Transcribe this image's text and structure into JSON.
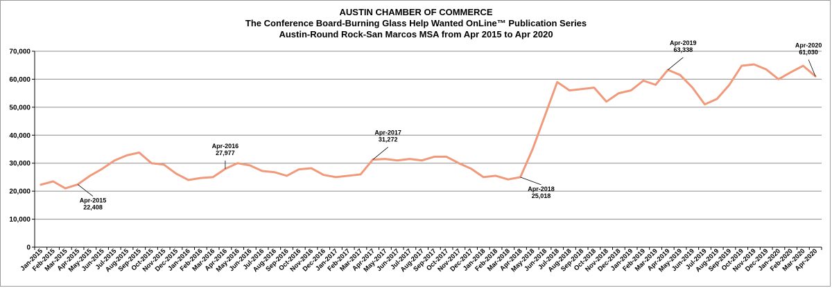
{
  "chart_data": {
    "type": "line",
    "title": "AUSTIN CHAMBER  OF COMMERCE",
    "subtitle": "The Conference Board-Burning  Glass  Help Wanted OnLine™ Publication Series",
    "subtitle2": "Austin-Round  Rock-San Marcos MSA from Apr 2015 to Apr 2020",
    "xlabel": "",
    "ylabel": "",
    "ylim": [
      0,
      70000
    ],
    "yticks": [
      0,
      10000,
      20000,
      30000,
      40000,
      50000,
      60000,
      70000
    ],
    "ytick_labels": [
      "0",
      "10,000",
      "20,000",
      "30,000",
      "40,000",
      "50,000",
      "60,000",
      "70,000"
    ],
    "grid": true,
    "line_color": "#f0997b",
    "categories": [
      "Jan-2015",
      "Feb-2015",
      "Mar-2015",
      "Apr-2015",
      "May-2015",
      "Jun-2015",
      "Jul-2015",
      "Aug-2015",
      "Sep-2015",
      "Oct-2015",
      "Nov-2015",
      "Dec-2015",
      "Jan-2016",
      "Feb-2016",
      "Mar-2016",
      "Apr-2016",
      "May-2016",
      "Jun-2016",
      "Jul-2016",
      "Aug-2016",
      "Sep-2016",
      "Oct-2016",
      "Nov-2016",
      "Dec-2016",
      "Jan-2017",
      "Feb-2017",
      "Mar-2017",
      "Apr-2017",
      "May-2017",
      "Jun-2017",
      "Jul-2017",
      "Aug-2017",
      "Sep-2017",
      "Oct-2017",
      "Nov-2017",
      "Dec-2017",
      "Jan-2018",
      "Feb-2018",
      "Mar-2018",
      "Apr-2018",
      "May-2018",
      "Jun-2018",
      "Jul-2018",
      "Aug-2018",
      "Sep-2018",
      "Oct-2018",
      "Nov-2018",
      "Dec-2018",
      "Jan-2019",
      "Feb-2019",
      "Mar-2019",
      "Apr-2019",
      "May-2019",
      "Jun-2019",
      "Jul-2019",
      "Aug-2019",
      "Sep-2019",
      "Oct-2019",
      "Nov-2019",
      "Dec-2019",
      "Jan-2020",
      "Feb-2020",
      "Mar-2020",
      "Apr-2020"
    ],
    "series": [
      {
        "values": [
          22300,
          23500,
          21000,
          22408,
          25500,
          28000,
          31000,
          32800,
          33800,
          30000,
          29500,
          26300,
          24000,
          24700,
          25000,
          27977,
          30000,
          29200,
          27200,
          26800,
          25500,
          27800,
          28200,
          25800,
          25000,
          25500,
          26000,
          31272,
          31500,
          31000,
          31500,
          31000,
          32300,
          32300,
          30000,
          28000,
          25000,
          25500,
          24200,
          25018,
          35000,
          47000,
          59000,
          56000,
          56500,
          57000,
          52000,
          55000,
          56000,
          59500,
          58000,
          63338,
          61500,
          57000,
          51000,
          53000,
          58000,
          64800,
          65300,
          63500,
          60000,
          62500,
          64800,
          61030
        ]
      }
    ],
    "annotations": [
      {
        "category": "Apr-2015",
        "label": "Apr-2015",
        "value_label": "22,408"
      },
      {
        "category": "Apr-2016",
        "label": "Apr-2016",
        "value_label": "27,977"
      },
      {
        "category": "Apr-2017",
        "label": "Apr-2017",
        "value_label": "31,272"
      },
      {
        "category": "Apr-2018",
        "label": "Apr-2018",
        "value_label": "25,018"
      },
      {
        "category": "Apr-2019",
        "label": "Apr-2019",
        "value_label": "63,338"
      },
      {
        "category": "Apr-2020",
        "label": "Apr-2020",
        "value_label": "61,030"
      }
    ]
  }
}
